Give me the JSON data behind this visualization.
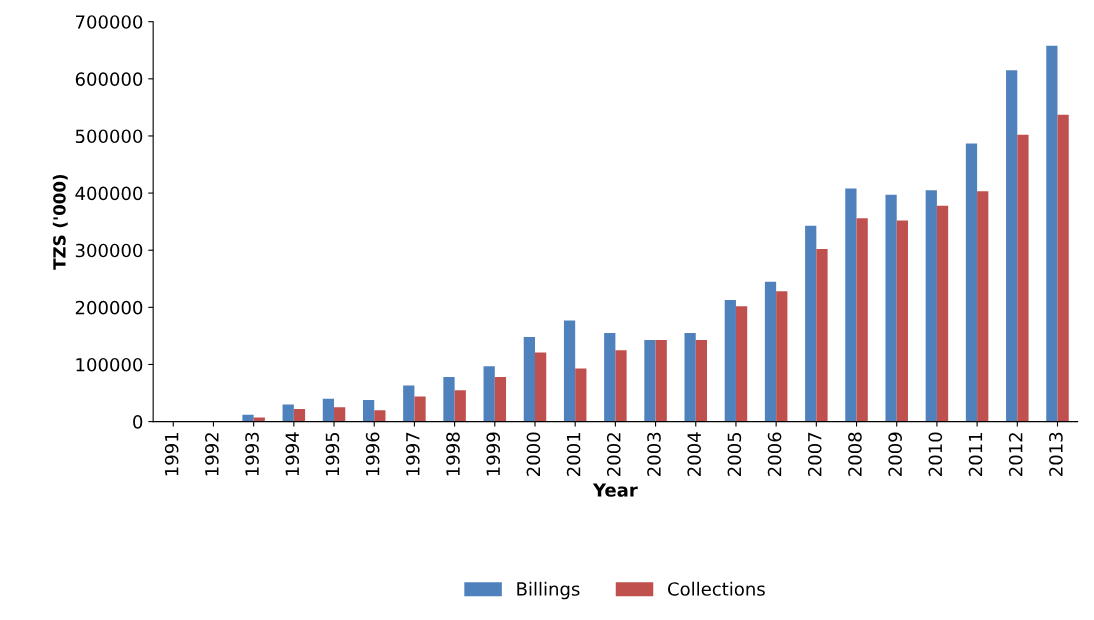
{
  "chart_data": {
    "type": "bar",
    "xlabel": "Year",
    "ylabel": "TZS ('000)",
    "categories": [
      "1991",
      "1992",
      "1993",
      "1994",
      "1995",
      "1996",
      "1997",
      "1998",
      "1999",
      "2000",
      "2001",
      "2002",
      "2003",
      "2004",
      "2005",
      "2006",
      "2007",
      "2008",
      "2009",
      "2010",
      "2011",
      "2012",
      "2013"
    ],
    "series": [
      {
        "name": "Billings",
        "color": "#4f81bd",
        "values": [
          0,
          0,
          12000,
          30000,
          40000,
          38000,
          63000,
          78000,
          97000,
          148000,
          177000,
          155000,
          143000,
          155000,
          213000,
          245000,
          343000,
          408000,
          397000,
          405000,
          487000,
          615000,
          658000
        ]
      },
      {
        "name": "Collections",
        "color": "#c0504d",
        "values": [
          0,
          0,
          7000,
          22000,
          25000,
          20000,
          44000,
          55000,
          78000,
          121000,
          93000,
          125000,
          143000,
          143000,
          202000,
          228000,
          302000,
          356000,
          352000,
          378000,
          403000,
          502000,
          537000
        ]
      }
    ],
    "ylim": [
      0,
      700000
    ],
    "yticks": [
      0,
      100000,
      200000,
      300000,
      400000,
      500000,
      600000,
      700000
    ],
    "grid": false,
    "legend": "bottom"
  }
}
